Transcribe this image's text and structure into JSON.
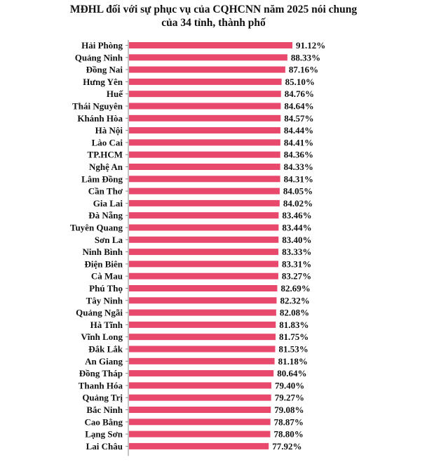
{
  "chart_data": {
    "type": "bar",
    "orientation": "horizontal",
    "title": [
      "MĐHL đối với sự phục vụ của CQHCNN năm 2025 nói chung",
      "của 34 tỉnh, thành phố"
    ],
    "categories": [
      "Hải Phòng",
      "Quảng Ninh",
      "Đồng Nai",
      "Hưng Yên",
      "Huế",
      "Thái Nguyên",
      "Khánh Hòa",
      "Hà Nội",
      "Lào Cai",
      "TP.HCM",
      "Nghệ An",
      "Lâm Đồng",
      "Cần Thơ",
      "Gia Lai",
      "Đà Nẵng",
      "Tuyên Quang",
      "Sơn La",
      "Ninh Bình",
      "Điện Biên",
      "Cà Mau",
      "Phú Thọ",
      "Tây Ninh",
      "Quảng Ngãi",
      "Hà Tĩnh",
      "Vĩnh Long",
      "Đắk Lắk",
      "An Giang",
      "Đồng Tháp",
      "Thanh Hóa",
      "Quảng Trị",
      "Bắc Ninh",
      "Cao Bằng",
      "Lạng Sơn",
      "Lai Châu"
    ],
    "values": [
      91.12,
      88.33,
      87.16,
      85.1,
      84.76,
      84.64,
      84.57,
      84.44,
      84.41,
      84.36,
      84.33,
      84.31,
      84.05,
      84.02,
      83.46,
      83.44,
      83.4,
      83.33,
      83.31,
      83.27,
      82.69,
      82.32,
      82.08,
      81.83,
      81.75,
      81.53,
      81.18,
      80.64,
      79.4,
      79.27,
      79.08,
      78.87,
      78.8,
      77.92
    ],
    "value_labels": [
      "91.12%",
      "88.33%",
      "87.16%",
      "85.10%",
      "84.76%",
      "84.64%",
      "84.57%",
      "84.44%",
      "84.41%",
      "84.36%",
      "84.33%",
      "84.31%",
      "84.05%",
      "84.02%",
      "83.46%",
      "83.44%",
      "83.40%",
      "83.33%",
      "83.31%",
      "83.27%",
      "82.69%",
      "82.32%",
      "82.08%",
      "81.83%",
      "81.75%",
      "81.53%",
      "81.18%",
      "80.64%",
      "79.40%",
      "79.27%",
      "79.08%",
      "78.87%",
      "78.80%",
      "77.92%"
    ],
    "bar_color": "#E8486B",
    "axis_color": "#888888",
    "grid": false,
    "legend": "none"
  }
}
